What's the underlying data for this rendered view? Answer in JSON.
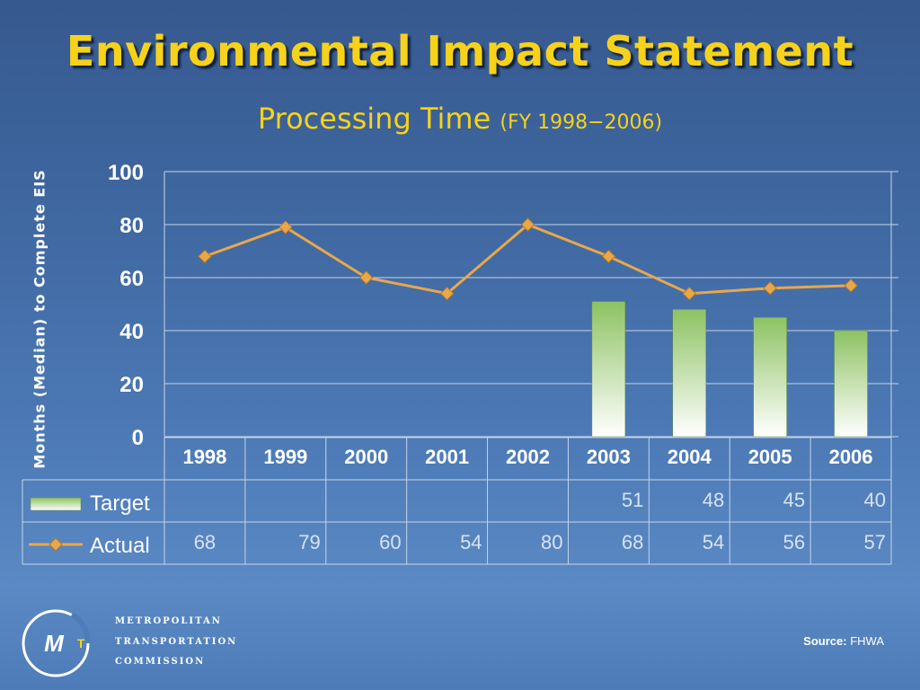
{
  "slide": {
    "title": "Environmental Impact Statement",
    "subtitle_main": "Processing Time",
    "subtitle_range": "(FY 1998−2006)",
    "org_line1": "METROPOLITAN",
    "org_line2": "TRANSPORTATION",
    "org_line3": "COMMISSION",
    "logo_text": "MT",
    "source_label": "Source:",
    "source_value": "FHWA"
  },
  "chart_data": {
    "type": "bar",
    "title": "",
    "ylabel": "Months (Median) to Complete EIS",
    "xlabel": "",
    "categories": [
      "1998",
      "1999",
      "2000",
      "2001",
      "2002",
      "2003",
      "2004",
      "2005",
      "2006"
    ],
    "ylim": [
      0,
      100
    ],
    "yticks": [
      0,
      20,
      40,
      60,
      80,
      100
    ],
    "grid": true,
    "legend_placement": "data-table-left",
    "series": [
      {
        "name": "Target",
        "kind": "bar",
        "color": "#8dc262",
        "values": [
          null,
          null,
          null,
          null,
          null,
          51,
          48,
          45,
          40
        ]
      },
      {
        "name": "Actual",
        "kind": "line",
        "color": "#e8a84a",
        "values": [
          68,
          79,
          60,
          54,
          80,
          68,
          54,
          56,
          57
        ]
      }
    ]
  }
}
